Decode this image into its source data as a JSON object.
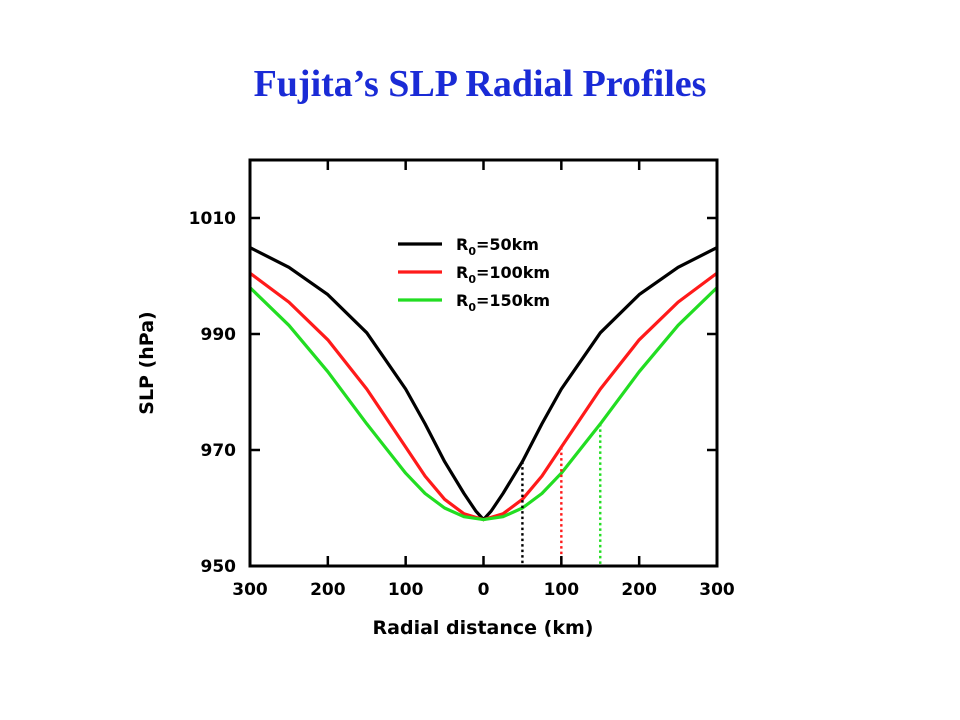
{
  "slide": {
    "title": "Fujita’s SLP Radial Profiles"
  },
  "chart_data": {
    "type": "line",
    "title": "",
    "xlabel": "Radial distance (km)",
    "ylabel": "SLP (hPa)",
    "xlim": [
      -300,
      300
    ],
    "ylim": [
      950,
      1020
    ],
    "xticks": [
      -300,
      -200,
      -100,
      0,
      100,
      200,
      300
    ],
    "xtick_labels": [
      "300",
      "200",
      "100",
      "0",
      "100",
      "200",
      "300"
    ],
    "yticks": [
      950,
      970,
      990,
      1010
    ],
    "ytick_labels": [
      "950",
      "970",
      "990",
      "1010"
    ],
    "grid": false,
    "legend_position": "top-center",
    "series": [
      {
        "label_prefix": "R",
        "label_sub": "0",
        "label_suffix": "=50km",
        "color": "#000000",
        "R0": 50,
        "x": [
          0,
          10,
          25,
          50,
          75,
          100,
          150,
          200,
          250,
          300
        ],
        "y": [
          958,
          959.5,
          962.5,
          968,
          974.5,
          980.5,
          990.2,
          996.8,
          1001.5,
          1004.9
        ]
      },
      {
        "label_prefix": "R",
        "label_sub": "0",
        "label_suffix": "=100km",
        "color": "#ff1a1a",
        "R0": 100,
        "x": [
          0,
          25,
          50,
          75,
          100,
          150,
          200,
          250,
          300
        ],
        "y": [
          958,
          959,
          961.5,
          965.5,
          970.5,
          980.5,
          989,
          995.5,
          1000.5
        ]
      },
      {
        "label_prefix": "R",
        "label_sub": "0",
        "label_suffix": "=150km",
        "color": "#22dd22",
        "R0": 150,
        "x": [
          0,
          25,
          50,
          75,
          100,
          150,
          200,
          250,
          300
        ],
        "y": [
          958,
          958.5,
          960,
          962.5,
          966,
          974.5,
          983.5,
          991.5,
          998
        ]
      }
    ],
    "markers": [
      {
        "x": 50,
        "color": "#000000"
      },
      {
        "x": 100,
        "color": "#ff1a1a"
      },
      {
        "x": 150,
        "color": "#22dd22"
      }
    ]
  }
}
